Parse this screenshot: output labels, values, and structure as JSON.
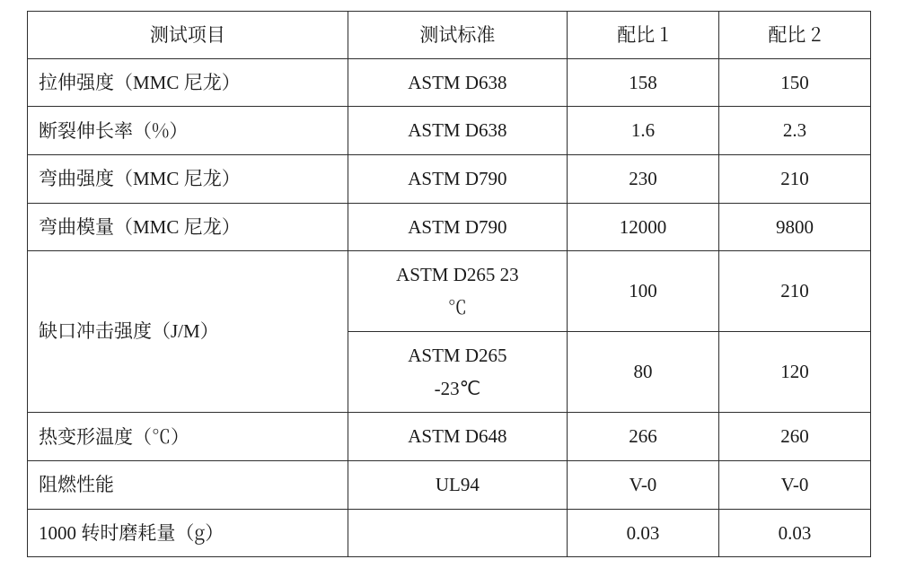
{
  "table": {
    "type": "table",
    "background_color": "#ffffff",
    "border_color": "#2e2e2e",
    "font_size_pt": 16,
    "columns": [
      "测试项目",
      "测试标准",
      "配比 1",
      "配比 2"
    ],
    "col_widths_pct": [
      38,
      26,
      18,
      18
    ],
    "rows": {
      "tensile_strength": {
        "item_prefix": "拉伸强度（",
        "item_latin": "MMC",
        "item_suffix": " 尼龙）",
        "standard": "ASTM D638",
        "v1": "158",
        "v2": "150"
      },
      "elongation_break": {
        "item": "断裂伸长率（%）",
        "standard": "ASTM D638",
        "v1": "1.6",
        "v2": "2.3"
      },
      "flexural_strength": {
        "item_prefix": "弯曲强度（",
        "item_latin": "MMC",
        "item_suffix": " 尼龙）",
        "standard": "ASTM D790",
        "v1": "230",
        "v2": "210"
      },
      "flexural_modulus": {
        "item_prefix": "弯曲模量（",
        "item_latin": "MMC",
        "item_suffix": " 尼龙）",
        "standard": "ASTM D790",
        "v1": "12000",
        "v2": "9800"
      },
      "notched_impact": {
        "item_prefix": "缺口冲击强度（",
        "item_latin": "J/M",
        "item_suffix": "）",
        "standard_a_line1": "ASTM D265 23",
        "standard_a_line2": "℃",
        "v1_a": "100",
        "v2_a": "210",
        "standard_b_line1": "ASTM D265",
        "standard_b_line2": "-23℃",
        "v1_b": "80",
        "v2_b": "120"
      },
      "hdt": {
        "item": "热变形温度（℃）",
        "standard": "ASTM D648",
        "v1": "266",
        "v2": "260"
      },
      "flame_retardant": {
        "item": "阻燃性能",
        "standard": "UL94",
        "v1": "V-0",
        "v2": "V-0"
      },
      "wear_1000": {
        "item_latin": "1000",
        "item_suffix": " 转时磨耗量（g）",
        "standard": "",
        "v1": "0.03",
        "v2": "0.03"
      }
    }
  }
}
